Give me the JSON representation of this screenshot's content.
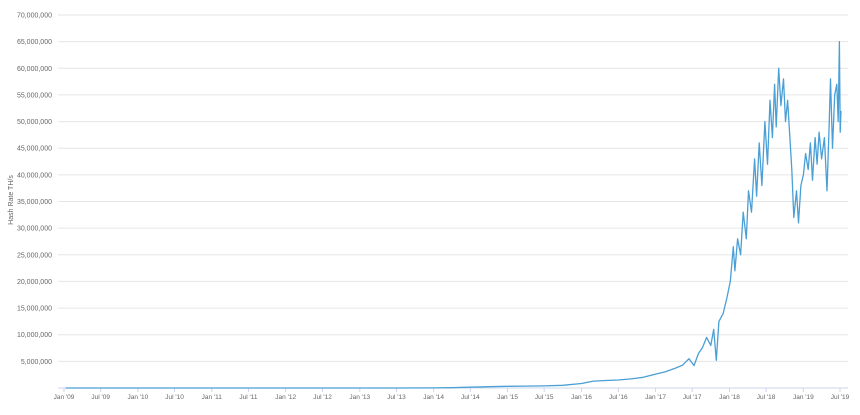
{
  "chart_data": {
    "type": "line",
    "title": "",
    "xlabel": "",
    "ylabel": "Hash Rate TH/s",
    "ylim": [
      0,
      70000000
    ],
    "grid": true,
    "line_color": "#4a9fd5",
    "y_ticks": [
      "5,000,000",
      "10,000,000",
      "15,000,000",
      "20,000,000",
      "25,000,000",
      "30,000,000",
      "35,000,000",
      "40,000,000",
      "45,000,000",
      "50,000,000",
      "55,000,000",
      "60,000,000",
      "65,000,000",
      "70,000,000"
    ],
    "y_tick_values": [
      5000000,
      10000000,
      15000000,
      20000000,
      25000000,
      30000000,
      35000000,
      40000000,
      45000000,
      50000000,
      55000000,
      60000000,
      65000000,
      70000000
    ],
    "x_ticks": [
      "Jan '09",
      "Jul '09",
      "Jan '10",
      "Jul '10",
      "Jan '11",
      "Jul '11",
      "Jan '12",
      "Jul '12",
      "Jan '13",
      "Jul '13",
      "Jan '14",
      "Jul '14",
      "Jan '15",
      "Jul '15",
      "Jan '16",
      "Jul '16",
      "Jan '17",
      "Jul '17",
      "Jan '18",
      "Jul '18",
      "Jan '19",
      "Jul '19"
    ],
    "x_tick_dates": [
      "2009-01",
      "2009-07",
      "2010-01",
      "2010-07",
      "2011-01",
      "2011-07",
      "2012-01",
      "2012-07",
      "2013-01",
      "2013-07",
      "2014-01",
      "2014-07",
      "2015-01",
      "2015-07",
      "2016-01",
      "2016-07",
      "2017-01",
      "2017-07",
      "2018-01",
      "2018-07",
      "2019-01",
      "2019-07"
    ],
    "points": [
      [
        "2009-01-09",
        0
      ],
      [
        "2011-01-01",
        0
      ],
      [
        "2013-01-01",
        20
      ],
      [
        "2013-07-01",
        300
      ],
      [
        "2014-01-01",
        10000
      ],
      [
        "2014-04-01",
        60000
      ],
      [
        "2014-07-01",
        150000
      ],
      [
        "2014-10-01",
        250000
      ],
      [
        "2015-01-01",
        320000
      ],
      [
        "2015-04-01",
        350000
      ],
      [
        "2015-07-01",
        400000
      ],
      [
        "2015-10-01",
        500000
      ],
      [
        "2016-01-01",
        850000
      ],
      [
        "2016-03-01",
        1300000
      ],
      [
        "2016-05-01",
        1400000
      ],
      [
        "2016-07-01",
        1500000
      ],
      [
        "2016-09-01",
        1700000
      ],
      [
        "2016-11-01",
        2000000
      ],
      [
        "2017-01-01",
        2600000
      ],
      [
        "2017-02-15",
        3000000
      ],
      [
        "2017-04-01",
        3600000
      ],
      [
        "2017-05-15",
        4300000
      ],
      [
        "2017-06-15",
        5500000
      ],
      [
        "2017-07-10",
        4200000
      ],
      [
        "2017-08-01",
        6500000
      ],
      [
        "2017-08-20",
        7500000
      ],
      [
        "2017-09-10",
        9500000
      ],
      [
        "2017-10-01",
        8000000
      ],
      [
        "2017-10-15",
        11000000
      ],
      [
        "2017-10-28",
        5200000
      ],
      [
        "2017-11-10",
        12500000
      ],
      [
        "2017-12-01",
        14000000
      ],
      [
        "2017-12-20",
        17000000
      ],
      [
        "2018-01-05",
        20000000
      ],
      [
        "2018-01-20",
        26500000
      ],
      [
        "2018-01-28",
        22000000
      ],
      [
        "2018-02-10",
        28000000
      ],
      [
        "2018-02-25",
        25000000
      ],
      [
        "2018-03-10",
        33000000
      ],
      [
        "2018-03-25",
        28000000
      ],
      [
        "2018-04-05",
        37000000
      ],
      [
        "2018-04-20",
        33000000
      ],
      [
        "2018-05-05",
        43000000
      ],
      [
        "2018-05-15",
        36000000
      ],
      [
        "2018-05-28",
        46000000
      ],
      [
        "2018-06-10",
        38000000
      ],
      [
        "2018-06-25",
        50000000
      ],
      [
        "2018-07-08",
        42000000
      ],
      [
        "2018-07-20",
        54000000
      ],
      [
        "2018-08-01",
        47000000
      ],
      [
        "2018-08-12",
        57000000
      ],
      [
        "2018-08-20",
        49000000
      ],
      [
        "2018-09-01",
        60000000
      ],
      [
        "2018-09-12",
        53000000
      ],
      [
        "2018-09-25",
        58000000
      ],
      [
        "2018-10-05",
        50000000
      ],
      [
        "2018-10-15",
        54000000
      ],
      [
        "2018-10-28",
        46000000
      ],
      [
        "2018-11-05",
        41000000
      ],
      [
        "2018-11-15",
        32000000
      ],
      [
        "2018-11-28",
        37000000
      ],
      [
        "2018-12-08",
        31000000
      ],
      [
        "2018-12-20",
        38000000
      ],
      [
        "2019-01-01",
        40000000
      ],
      [
        "2019-01-12",
        44000000
      ],
      [
        "2019-01-25",
        41000000
      ],
      [
        "2019-02-05",
        46000000
      ],
      [
        "2019-02-15",
        39000000
      ],
      [
        "2019-02-28",
        47000000
      ],
      [
        "2019-03-10",
        42000000
      ],
      [
        "2019-03-20",
        48000000
      ],
      [
        "2019-04-01",
        43000000
      ],
      [
        "2019-04-15",
        47000000
      ],
      [
        "2019-04-28",
        37000000
      ],
      [
        "2019-05-08",
        49000000
      ],
      [
        "2019-05-15",
        58000000
      ],
      [
        "2019-05-25",
        45000000
      ],
      [
        "2019-06-05",
        55000000
      ],
      [
        "2019-06-15",
        57000000
      ],
      [
        "2019-06-22",
        50000000
      ],
      [
        "2019-06-28",
        65000000
      ],
      [
        "2019-07-02",
        48000000
      ],
      [
        "2019-07-06",
        52000000
      ]
    ]
  }
}
